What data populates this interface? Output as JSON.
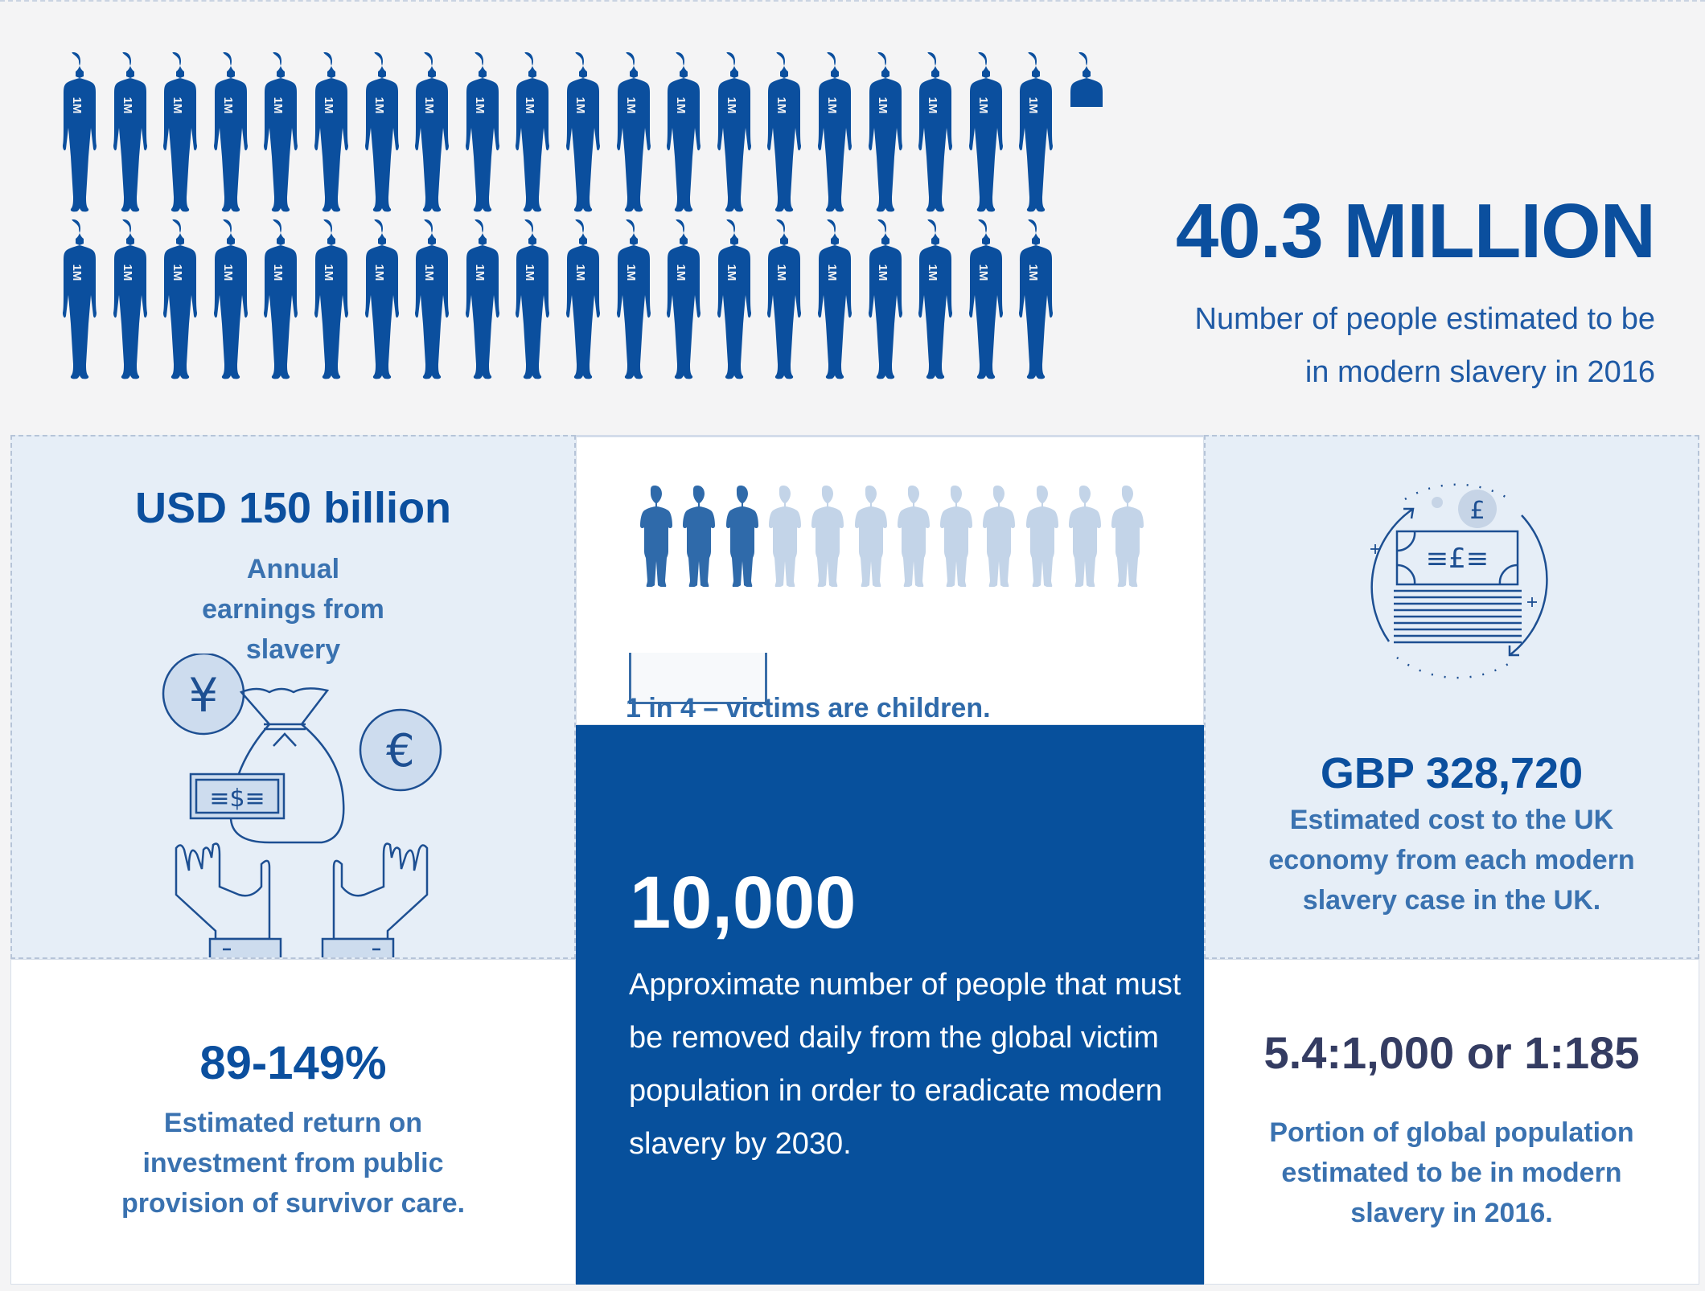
{
  "colors": {
    "primary_blue": "#0b4f9e",
    "panel_blue": "#07509c",
    "light_panel": "#e6eef7",
    "text_blue": "#3a72b0",
    "dark_navy": "#343c62",
    "faded_child": "#c3d4e8",
    "background": "#f4f4f5"
  },
  "hero": {
    "figure_label": "1M",
    "figures_per_row": 20,
    "rows": 2,
    "partial_figure": 0.3,
    "stat": "40.3 MILLION",
    "description_line1": "Number of people estimated to be",
    "description_line2": "in modern slavery in 2016"
  },
  "cards": {
    "earnings": {
      "stat": "USD 150 billion",
      "description": "Annual earnings from slavery",
      "icons": [
        "yen-coin-icon",
        "euro-coin-icon",
        "money-bag-icon",
        "dollar-bill-icon",
        "open-hands-icon"
      ],
      "yen_symbol": "¥",
      "euro_symbol": "€",
      "dollar_symbol": "≡$≡"
    },
    "roi": {
      "stat": "89-149%",
      "description": "Estimated return on investment from public provision of survivor care."
    },
    "children": {
      "total_figures": 12,
      "highlighted_figures": 3,
      "description": "1 in 4 – victims are children."
    },
    "daily": {
      "stat": "10,000",
      "description": "Approximate number of people that must be removed daily from the global victim population in order to eradicate modern slavery by 2030."
    },
    "uk_cost": {
      "stat": "GBP 328,720",
      "description": "Estimated cost to the UK economy from each modern slavery case in the UK.",
      "pound_symbol": "£",
      "bill_label": "≡£≡"
    },
    "ratio": {
      "stat": "5.4:1,000 or 1:185",
      "description": "Portion of global population estimated to be in modern slavery in 2016."
    }
  }
}
